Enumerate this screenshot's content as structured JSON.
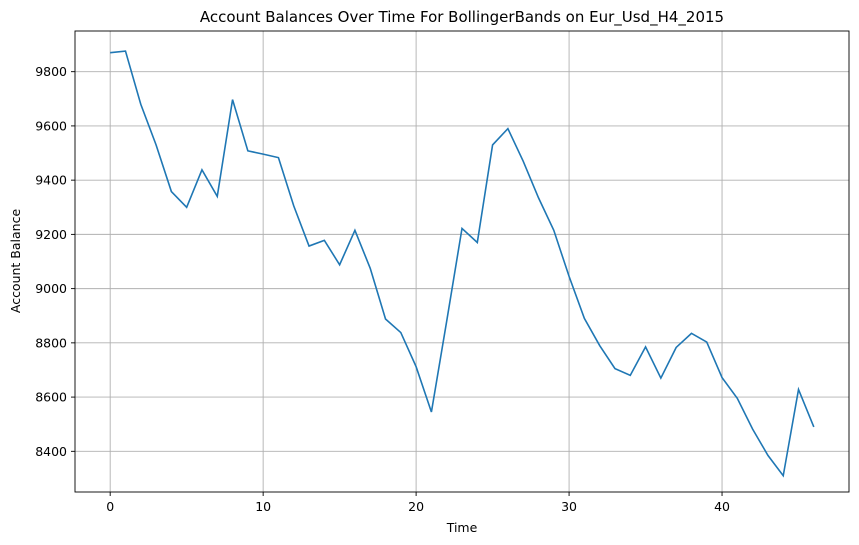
{
  "chart_data": {
    "type": "line",
    "title": "Account Balances Over Time For BollingerBands on Eur_Usd_H4_2015",
    "xlabel": "Time",
    "ylabel": "Account Balance",
    "xlim": [
      -2.3,
      48.3
    ],
    "ylim": [
      8250,
      9950
    ],
    "xticks": [
      0,
      10,
      20,
      30,
      40
    ],
    "yticks": [
      8400,
      8600,
      8800,
      9000,
      9200,
      9400,
      9600,
      9800
    ],
    "grid": true,
    "line_color": "#1f77b4",
    "series": [
      {
        "x": [
          0,
          1,
          2,
          3,
          4,
          5,
          6,
          7,
          8,
          9,
          10,
          11,
          12,
          13,
          14,
          15,
          16,
          17,
          18,
          19,
          20,
          21,
          22,
          23,
          24,
          25,
          26,
          27,
          28,
          29,
          30,
          31,
          32,
          33,
          34,
          35,
          36,
          37,
          38,
          39,
          40,
          41,
          42,
          43,
          44,
          45,
          46
        ],
        "values": [
          9870,
          9876,
          9680,
          9530,
          9358,
          9300,
          9438,
          9340,
          9697,
          9508,
          9496,
          9483,
          9305,
          9157,
          9178,
          9088,
          9215,
          9075,
          8888,
          8838,
          8712,
          8545,
          8880,
          9222,
          9170,
          9530,
          9590,
          9470,
          9335,
          9215,
          9045,
          8890,
          8790,
          8705,
          8680,
          8785,
          8670,
          8783,
          8835,
          8803,
          8672,
          8595,
          8482,
          8385,
          8310,
          8628,
          8490
        ]
      }
    ]
  }
}
